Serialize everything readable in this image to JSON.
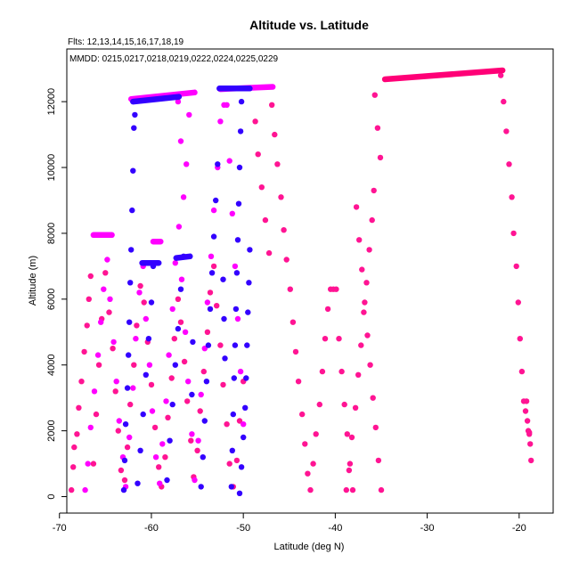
{
  "chart_data": {
    "type": "scatter",
    "title": "Altitude vs. Latitude",
    "subtitle": "Flts: 12,13,14,15,16,17,18,19",
    "legend_text": "MMDD: 0215,0217,0218,0219,0222,0224,0225,0229",
    "legend_placement": "top-left",
    "xlabel": "Latitude (deg N)",
    "ylabel": "Altitude (m)",
    "xlim": [
      -69.2,
      -16.3
    ],
    "ylim": [
      -500,
      13600
    ],
    "xticks": [
      -70,
      -60,
      -50,
      -40,
      -30,
      -20
    ],
    "yticks": [
      0,
      2000,
      4000,
      6000,
      8000,
      10000,
      12000
    ],
    "grid": false,
    "colors": [
      "#ff1493",
      "#ff00ff",
      "#3300ff",
      "#ff0077"
    ],
    "series": [
      {
        "color": "#ff1493",
        "points": [
          [
            -68.7,
            200
          ],
          [
            -68.5,
            900
          ],
          [
            -68.4,
            1500
          ],
          [
            -68.1,
            1900
          ],
          [
            -67.9,
            2700
          ],
          [
            -67.6,
            3500
          ],
          [
            -67.3,
            4400
          ],
          [
            -67.0,
            5200
          ],
          [
            -66.8,
            6000
          ],
          [
            -66.6,
            6700
          ],
          [
            -66.3,
            1000
          ],
          [
            -66.0,
            2500
          ],
          [
            -65.7,
            4000
          ],
          [
            -65.4,
            5400
          ],
          [
            -65.0,
            6800
          ],
          [
            -64.6,
            5600
          ],
          [
            -64.2,
            4500
          ],
          [
            -63.9,
            3200
          ],
          [
            -63.6,
            2000
          ],
          [
            -63.3,
            800
          ],
          [
            -62.9,
            500
          ],
          [
            -62.6,
            1500
          ],
          [
            -62.3,
            2800
          ],
          [
            -61.9,
            4000
          ],
          [
            -61.6,
            5200
          ],
          [
            -61.2,
            6400
          ],
          [
            -60.8,
            5900
          ],
          [
            -60.4,
            4700
          ],
          [
            -60.0,
            3400
          ],
          [
            -59.6,
            2100
          ],
          [
            -59.2,
            900
          ],
          [
            -58.9,
            300
          ],
          [
            -58.5,
            1200
          ],
          [
            -58.2,
            2400
          ],
          [
            -57.8,
            3600
          ],
          [
            -57.5,
            4800
          ],
          [
            -57.1,
            6000
          ],
          [
            -56.8,
            5300
          ],
          [
            -56.4,
            4100
          ],
          [
            -56.1,
            2900
          ],
          [
            -55.7,
            1700
          ],
          [
            -55.4,
            600
          ],
          [
            -55.0,
            1400
          ],
          [
            -54.7,
            2600
          ],
          [
            -54.3,
            3800
          ],
          [
            -53.9,
            5000
          ],
          [
            -53.6,
            6200
          ],
          [
            -53.2,
            7000
          ],
          [
            -52.9,
            5800
          ],
          [
            -52.5,
            4600
          ],
          [
            -52.2,
            3400
          ],
          [
            -51.8,
            2200
          ],
          [
            -51.5,
            1000
          ],
          [
            -51.1,
            300
          ],
          [
            -50.7,
            1100
          ],
          [
            -50.4,
            2300
          ],
          [
            -50.0,
            3500
          ],
          [
            -48.7,
            11400
          ],
          [
            -48.4,
            10400
          ],
          [
            -48.0,
            9400
          ],
          [
            -47.6,
            8400
          ],
          [
            -47.2,
            7400
          ],
          [
            -46.9,
            11900
          ],
          [
            -46.6,
            11000
          ],
          [
            -46.3,
            10100
          ],
          [
            -45.9,
            9100
          ],
          [
            -45.6,
            8100
          ],
          [
            -45.3,
            7200
          ],
          [
            -44.9,
            6300
          ],
          [
            -44.6,
            5300
          ],
          [
            -44.3,
            4400
          ],
          [
            -44.0,
            3500
          ],
          [
            -43.6,
            2500
          ],
          [
            -43.3,
            1600
          ],
          [
            -43.0,
            700
          ],
          [
            -42.7,
            200
          ],
          [
            -42.4,
            1000
          ],
          [
            -42.1,
            1900
          ],
          [
            -41.7,
            2800
          ],
          [
            -41.4,
            3800
          ],
          [
            -41.1,
            4800
          ],
          [
            -40.8,
            5700
          ],
          [
            -40.5,
            6300
          ],
          [
            -40.2,
            6300
          ],
          [
            -39.9,
            6300
          ],
          [
            -39.6,
            4800
          ],
          [
            -39.3,
            3800
          ],
          [
            -39.0,
            2800
          ],
          [
            -38.7,
            1900
          ],
          [
            -38.4,
            1000
          ],
          [
            -38.1,
            200
          ],
          [
            -37.7,
            8800
          ],
          [
            -37.4,
            7800
          ],
          [
            -37.1,
            6900
          ],
          [
            -36.8,
            5900
          ],
          [
            -36.5,
            4900
          ],
          [
            -36.2,
            4000
          ],
          [
            -35.9,
            3000
          ],
          [
            -35.6,
            2100
          ],
          [
            -35.3,
            1100
          ],
          [
            -35.0,
            200
          ],
          [
            -35.7,
            12200
          ],
          [
            -35.4,
            11200
          ],
          [
            -35.1,
            10300
          ],
          [
            -35.8,
            9300
          ],
          [
            -36.0,
            8400
          ],
          [
            -36.3,
            7500
          ],
          [
            -36.6,
            6500
          ],
          [
            -36.9,
            5600
          ],
          [
            -37.2,
            4600
          ],
          [
            -37.5,
            3700
          ],
          [
            -37.8,
            2700
          ],
          [
            -38.2,
            1800
          ],
          [
            -38.5,
            800
          ],
          [
            -38.8,
            200
          ],
          [
            -22.0,
            12800
          ],
          [
            -21.7,
            12000
          ],
          [
            -21.4,
            11100
          ],
          [
            -21.1,
            10100
          ],
          [
            -20.8,
            9100
          ],
          [
            -20.6,
            8000
          ],
          [
            -20.3,
            7000
          ],
          [
            -20.1,
            5900
          ],
          [
            -19.9,
            4800
          ],
          [
            -19.7,
            3800
          ],
          [
            -19.5,
            2900
          ],
          [
            -19.3,
            2600
          ],
          [
            -19.1,
            2300
          ],
          [
            -19.0,
            2000
          ],
          [
            -18.9,
            1900
          ],
          [
            -18.8,
            1600
          ],
          [
            -18.7,
            1100
          ],
          [
            -18.9,
            1950
          ],
          [
            -19.2,
            2900
          ]
        ]
      },
      {
        "color": "#ff00ff",
        "points": [
          [
            -67.2,
            200
          ],
          [
            -66.9,
            1000
          ],
          [
            -66.6,
            2100
          ],
          [
            -66.2,
            3200
          ],
          [
            -65.8,
            4300
          ],
          [
            -65.5,
            5300
          ],
          [
            -65.2,
            6300
          ],
          [
            -64.8,
            7200
          ],
          [
            -64.5,
            6000
          ],
          [
            -64.1,
            4700
          ],
          [
            -63.8,
            3500
          ],
          [
            -63.5,
            2300
          ],
          [
            -63.1,
            1200
          ],
          [
            -62.8,
            300
          ],
          [
            -62.4,
            1800
          ],
          [
            -62.0,
            3300
          ],
          [
            -61.7,
            4800
          ],
          [
            -61.3,
            6200
          ],
          [
            -60.9,
            7000
          ],
          [
            -60.6,
            5400
          ],
          [
            -60.2,
            4000
          ],
          [
            -59.9,
            2600
          ],
          [
            -59.5,
            1200
          ],
          [
            -59.1,
            400
          ],
          [
            -58.8,
            1600
          ],
          [
            -58.4,
            2900
          ],
          [
            -58.1,
            4300
          ],
          [
            -57.7,
            5700
          ],
          [
            -57.4,
            7100
          ],
          [
            -57.0,
            8200
          ],
          [
            -56.7,
            6600
          ],
          [
            -56.3,
            5000
          ],
          [
            -56.0,
            3500
          ],
          [
            -55.6,
            1900
          ],
          [
            -55.3,
            500
          ],
          [
            -54.9,
            1700
          ],
          [
            -54.6,
            3100
          ],
          [
            -54.2,
            4500
          ],
          [
            -53.9,
            5900
          ],
          [
            -53.5,
            7300
          ],
          [
            -53.2,
            8700
          ],
          [
            -52.8,
            10000
          ],
          [
            -52.5,
            11400
          ],
          [
            -52.1,
            11900
          ],
          [
            -51.8,
            11900
          ],
          [
            -51.5,
            10200
          ],
          [
            -51.2,
            8600
          ],
          [
            -50.9,
            7000
          ],
          [
            -50.6,
            5400
          ],
          [
            -50.3,
            3800
          ],
          [
            -50.0,
            2200
          ],
          [
            -55.9,
            11600
          ],
          [
            -56.2,
            10100
          ],
          [
            -56.5,
            9100
          ],
          [
            -56.8,
            10800
          ],
          [
            -57.1,
            12000
          ]
        ]
      },
      {
        "color": "#3300ff",
        "points": [
          [
            -63.0,
            200
          ],
          [
            -62.9,
            1100
          ],
          [
            -62.8,
            2200
          ],
          [
            -62.6,
            3300
          ],
          [
            -62.5,
            4300
          ],
          [
            -62.4,
            5300
          ],
          [
            -62.3,
            6500
          ],
          [
            -62.2,
            7500
          ],
          [
            -62.1,
            8700
          ],
          [
            -62.0,
            9900
          ],
          [
            -61.9,
            11200
          ],
          [
            -61.8,
            11600
          ],
          [
            -59.8,
            7000
          ],
          [
            -60.0,
            5900
          ],
          [
            -60.3,
            4800
          ],
          [
            -60.6,
            3700
          ],
          [
            -60.9,
            2500
          ],
          [
            -61.2,
            1400
          ],
          [
            -61.5,
            400
          ],
          [
            -58.3,
            500
          ],
          [
            -58.0,
            1700
          ],
          [
            -57.7,
            2800
          ],
          [
            -57.4,
            4000
          ],
          [
            -57.1,
            5100
          ],
          [
            -56.8,
            6300
          ],
          [
            -56.5,
            7300
          ],
          [
            -54.6,
            300
          ],
          [
            -54.4,
            1200
          ],
          [
            -54.2,
            2300
          ],
          [
            -54.0,
            3500
          ],
          [
            -53.8,
            4600
          ],
          [
            -53.6,
            5700
          ],
          [
            -53.4,
            6800
          ],
          [
            -53.2,
            7900
          ],
          [
            -53.0,
            9000
          ],
          [
            -52.8,
            10100
          ],
          [
            -50.4,
            100
          ],
          [
            -50.2,
            900
          ],
          [
            -50.0,
            1800
          ],
          [
            -49.8,
            2700
          ],
          [
            -49.7,
            3600
          ],
          [
            -49.6,
            4600
          ],
          [
            -49.5,
            5600
          ],
          [
            -49.4,
            6500
          ],
          [
            -49.3,
            7500
          ],
          [
            -51.3,
            300
          ],
          [
            -51.2,
            1400
          ],
          [
            -51.1,
            2500
          ],
          [
            -51.0,
            3600
          ],
          [
            -50.9,
            4600
          ],
          [
            -50.8,
            5700
          ],
          [
            -50.7,
            6800
          ],
          [
            -50.6,
            7800
          ],
          [
            -50.5,
            8900
          ],
          [
            -50.4,
            10000
          ],
          [
            -50.3,
            11100
          ],
          [
            -50.2,
            12000
          ],
          [
            -52.0,
            4200
          ],
          [
            -52.1,
            5400
          ],
          [
            -52.2,
            6600
          ],
          [
            -55.5,
            4700
          ],
          [
            -55.6,
            3100
          ]
        ]
      }
    ],
    "segments": [
      {
        "color": "#ff00ff",
        "from": [
          -66.3,
          7950
        ],
        "to": [
          -64.3,
          7950
        ]
      },
      {
        "color": "#ff00ff",
        "from": [
          -62.2,
          12080
        ],
        "to": [
          -55.3,
          12280
        ]
      },
      {
        "color": "#3300ff",
        "from": [
          -62.0,
          12000
        ],
        "to": [
          -57.0,
          12150
        ]
      },
      {
        "color": "#ff00ff",
        "from": [
          -52.5,
          12380
        ],
        "to": [
          -46.8,
          12450
        ]
      },
      {
        "color": "#3300ff",
        "from": [
          -52.6,
          12400
        ],
        "to": [
          -49.3,
          12400
        ]
      },
      {
        "color": "#3300ff",
        "from": [
          -61.0,
          7100
        ],
        "to": [
          -59.2,
          7100
        ]
      },
      {
        "color": "#ff00ff",
        "from": [
          -59.8,
          7750
        ],
        "to": [
          -59.0,
          7750
        ]
      },
      {
        "color": "#3300ff",
        "from": [
          -57.3,
          7250
        ],
        "to": [
          -55.8,
          7300
        ]
      },
      {
        "color": "#ff0077",
        "from": [
          -34.6,
          12680
        ],
        "to": [
          -21.8,
          12950
        ]
      }
    ]
  }
}
